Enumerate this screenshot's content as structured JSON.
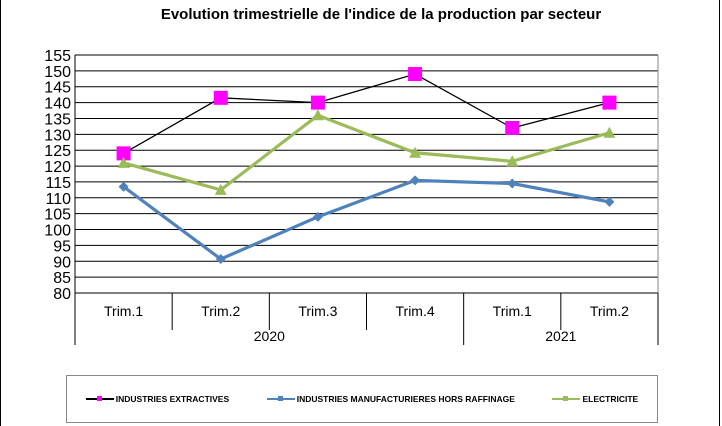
{
  "chart_data": {
    "type": "line",
    "title": "Evolution trimestrielle de l'indice de la production par secteur",
    "categories": [
      "Trim.1",
      "Trim.2",
      "Trim.3",
      "Trim.4",
      "Trim.1",
      "Trim.2"
    ],
    "groups": [
      {
        "label": "2020",
        "count": 4
      },
      {
        "label": "2021",
        "count": 2
      }
    ],
    "ylim": [
      80,
      155
    ],
    "yticks": [
      80,
      85,
      90,
      95,
      100,
      105,
      110,
      115,
      120,
      125,
      130,
      135,
      140,
      145,
      150,
      155
    ],
    "grid": true,
    "legend_position": "bottom",
    "series": [
      {
        "name": "INDUSTRIES EXTRACTIVES",
        "values": [
          124,
          141.5,
          140,
          149,
          132,
          140
        ],
        "line_color": "#000000",
        "marker_color": "#FF00FF",
        "marker": "square"
      },
      {
        "name": "INDUSTRIES MANUFACTURIERES HORS RAFFINAGE",
        "values": [
          113.5,
          90.7,
          104,
          115.5,
          114.5,
          108.7
        ],
        "line_color": "#4F81BD",
        "marker_color": "#4F81BD",
        "marker": "diamond"
      },
      {
        "name": "ELECTRICITE",
        "values": [
          121,
          112.5,
          136,
          124.2,
          121.5,
          130.5
        ],
        "line_color": "#9BBB59",
        "marker_color": "#9BBB59",
        "marker": "triangle"
      }
    ]
  }
}
